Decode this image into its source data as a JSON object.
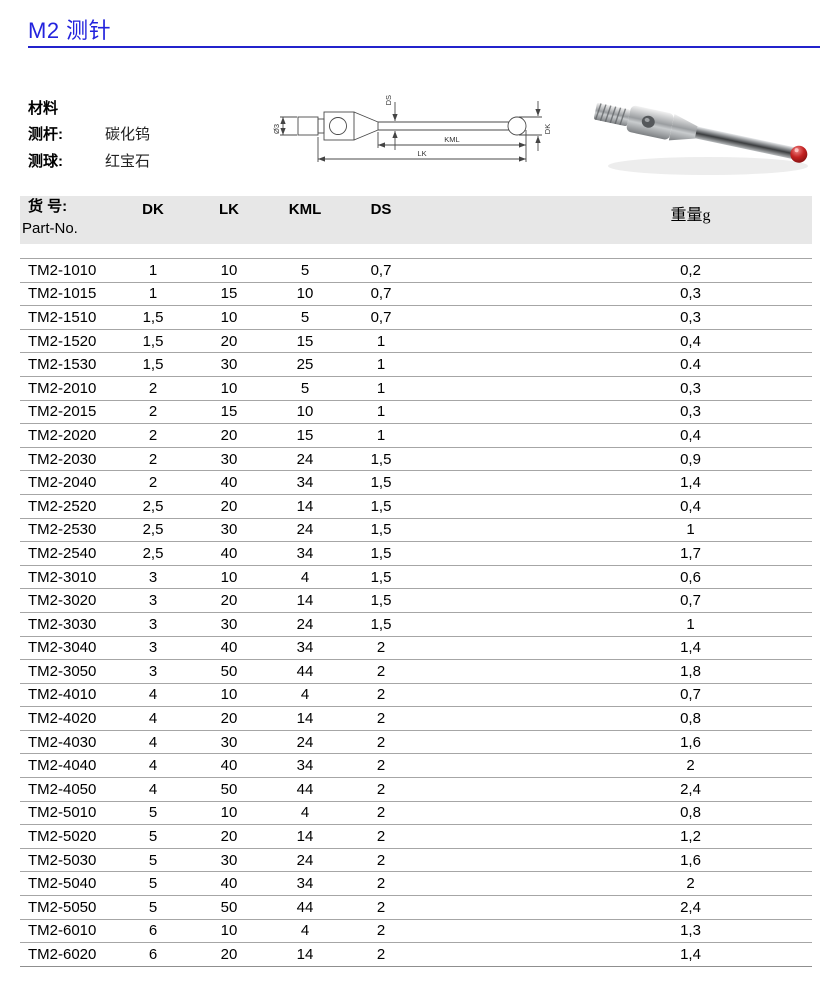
{
  "page": {
    "title": "M2 测针"
  },
  "materials": {
    "heading": "材料",
    "rows": [
      {
        "label": "测杆:",
        "value": "碳化钨"
      },
      {
        "label": "测球:",
        "value": "红宝石"
      }
    ]
  },
  "diagram": {
    "thread_label": "Ø3",
    "ds_label": "DS",
    "kml_label": "KML",
    "lk_label": "LK",
    "dk_label": "DK"
  },
  "table": {
    "header": {
      "part_cn": "货 号:",
      "part_en": "Part-No.",
      "dk": "DK",
      "lk": "LK",
      "kml": "KML",
      "ds": "DS",
      "weight": "重量g"
    },
    "rows": [
      {
        "part": "TM2-1010",
        "dk": "1",
        "lk": "10",
        "kml": "5",
        "ds": "0,7",
        "weight": "0,2"
      },
      {
        "part": "TM2-1015",
        "dk": "1",
        "lk": "15",
        "kml": "10",
        "ds": "0,7",
        "weight": "0,3"
      },
      {
        "part": "TM2-1510",
        "dk": "1,5",
        "lk": "10",
        "kml": "5",
        "ds": "0,7",
        "weight": "0,3"
      },
      {
        "part": "TM2-1520",
        "dk": "1,5",
        "lk": "20",
        "kml": "15",
        "ds": "1",
        "weight": "0,4"
      },
      {
        "part": "TM2-1530",
        "dk": "1,5",
        "lk": "30",
        "kml": "25",
        "ds": "1",
        "weight": "0.4"
      },
      {
        "part": "TM2-2010",
        "dk": "2",
        "lk": "10",
        "kml": "5",
        "ds": "1",
        "weight": "0,3"
      },
      {
        "part": "TM2-2015",
        "dk": "2",
        "lk": "15",
        "kml": "10",
        "ds": "1",
        "weight": "0,3"
      },
      {
        "part": "TM2-2020",
        "dk": "2",
        "lk": "20",
        "kml": "15",
        "ds": "1",
        "weight": "0,4"
      },
      {
        "part": "TM2-2030",
        "dk": "2",
        "lk": "30",
        "kml": "24",
        "ds": "1,5",
        "weight": "0,9"
      },
      {
        "part": "TM2-2040",
        "dk": "2",
        "lk": "40",
        "kml": "34",
        "ds": "1,5",
        "weight": "1,4"
      },
      {
        "part": "TM2-2520",
        "dk": "2,5",
        "lk": "20",
        "kml": "14",
        "ds": "1,5",
        "weight": "0,4"
      },
      {
        "part": "TM2-2530",
        "dk": "2,5",
        "lk": "30",
        "kml": "24",
        "ds": "1,5",
        "weight": "1"
      },
      {
        "part": "TM2-2540",
        "dk": "2,5",
        "lk": "40",
        "kml": "34",
        "ds": "1,5",
        "weight": "1,7"
      },
      {
        "part": "TM2-3010",
        "dk": "3",
        "lk": "10",
        "kml": "4",
        "ds": "1,5",
        "weight": "0,6"
      },
      {
        "part": "TM2-3020",
        "dk": "3",
        "lk": "20",
        "kml": "14",
        "ds": "1,5",
        "weight": "0,7"
      },
      {
        "part": "TM2-3030",
        "dk": "3",
        "lk": "30",
        "kml": "24",
        "ds": "1,5",
        "weight": "1"
      },
      {
        "part": "TM2-3040",
        "dk": "3",
        "lk": "40",
        "kml": "34",
        "ds": "2",
        "weight": "1,4"
      },
      {
        "part": "TM2-3050",
        "dk": "3",
        "lk": "50",
        "kml": "44",
        "ds": "2",
        "weight": "1,8"
      },
      {
        "part": "TM2-4010",
        "dk": "4",
        "lk": "10",
        "kml": "4",
        "ds": "2",
        "weight": "0,7"
      },
      {
        "part": "TM2-4020",
        "dk": "4",
        "lk": "20",
        "kml": "14",
        "ds": "2",
        "weight": "0,8"
      },
      {
        "part": "TM2-4030",
        "dk": "4",
        "lk": "30",
        "kml": "24",
        "ds": "2",
        "weight": "1,6"
      },
      {
        "part": "TM2-4040",
        "dk": "4",
        "lk": "40",
        "kml": "34",
        "ds": "2",
        "weight": "2"
      },
      {
        "part": "TM2-4050",
        "dk": "4",
        "lk": "50",
        "kml": "44",
        "ds": "2",
        "weight": "2,4"
      },
      {
        "part": "TM2-5010",
        "dk": "5",
        "lk": "10",
        "kml": "4",
        "ds": "2",
        "weight": "0,8"
      },
      {
        "part": "TM2-5020",
        "dk": "5",
        "lk": "20",
        "kml": "14",
        "ds": "2",
        "weight": "1,2"
      },
      {
        "part": "TM2-5030",
        "dk": "5",
        "lk": "30",
        "kml": "24",
        "ds": "2",
        "weight": "1,6"
      },
      {
        "part": "TM2-5040",
        "dk": "5",
        "lk": "40",
        "kml": "34",
        "ds": "2",
        "weight": "2"
      },
      {
        "part": "TM2-5050",
        "dk": "5",
        "lk": "50",
        "kml": "44",
        "ds": "2",
        "weight": "2,4"
      },
      {
        "part": "TM2-6010",
        "dk": "6",
        "lk": "10",
        "kml": "4",
        "ds": "2",
        "weight": "1,3"
      },
      {
        "part": "TM2-6020",
        "dk": "6",
        "lk": "20",
        "kml": "14",
        "ds": "2",
        "weight": "1,4"
      }
    ]
  },
  "colors": {
    "title_blue": "#2222dd",
    "header_gray": "#e7e7e7",
    "ruby_red": "#b51a1a"
  }
}
